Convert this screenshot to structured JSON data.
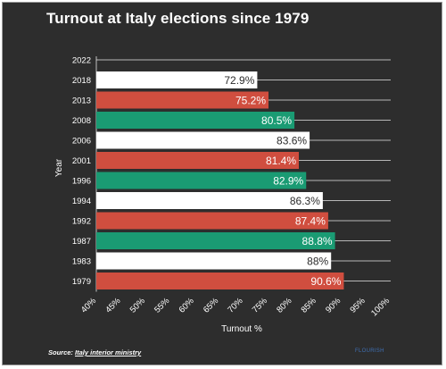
{
  "title": "Turnout at Italy elections since 1979",
  "source": {
    "prefix": "Source: ",
    "link_text": "Italy interior ministry"
  },
  "credit": "FLOURISH",
  "colors": {
    "background": "#2d2d2d",
    "white": "#ffffff",
    "red": "#d04e3f",
    "green": "#1a9b73",
    "grid": "#e6e6e6",
    "text": "#ffffff"
  },
  "chart_data": {
    "type": "bar",
    "orientation": "horizontal",
    "xlabel": "Turnout %",
    "ylabel": "Year",
    "xlim": [
      40,
      100
    ],
    "x_ticks": [
      "40%",
      "45%",
      "50%",
      "55%",
      "60%",
      "65%",
      "70%",
      "75%",
      "80%",
      "85%",
      "90%",
      "95%",
      "100%"
    ],
    "categories": [
      "2022",
      "2018",
      "2013",
      "2008",
      "2006",
      "2001",
      "1996",
      "1994",
      "1992",
      "1987",
      "1983",
      "1979"
    ],
    "values": [
      null,
      72.9,
      75.2,
      80.5,
      83.6,
      81.4,
      82.9,
      86.3,
      87.4,
      88.8,
      88,
      90.6
    ],
    "labels": [
      "",
      "72.9%",
      "75.2%",
      "80.5%",
      "83.6%",
      "81.4%",
      "82.9%",
      "86.3%",
      "87.4%",
      "88.8%",
      "88%",
      "90.6%"
    ],
    "bar_colors": [
      "white",
      "white",
      "red",
      "green",
      "white",
      "red",
      "green",
      "white",
      "red",
      "green",
      "white",
      "red"
    ],
    "grid": true
  }
}
